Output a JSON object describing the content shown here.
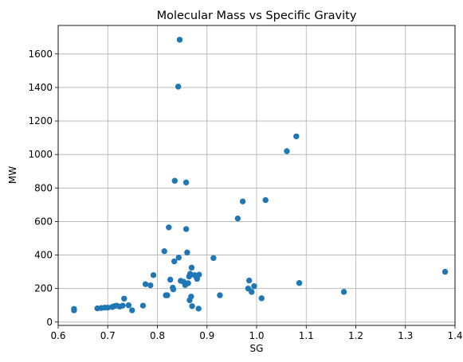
{
  "chart_data": {
    "type": "scatter",
    "title": "Molecular Mass vs Specific Gravity",
    "xlabel": "SG",
    "ylabel": "MW",
    "xlim": [
      0.6,
      1.4
    ],
    "ylim": [
      -20,
      1770
    ],
    "xticks": [
      0.6,
      0.7,
      0.8,
      0.9,
      1.0,
      1.1,
      1.2,
      1.3,
      1.4
    ],
    "yticks": [
      0,
      200,
      400,
      600,
      800,
      1000,
      1200,
      1400,
      1600
    ],
    "grid": true,
    "marker_color": "#1f77b4",
    "points": [
      {
        "x": 0.632,
        "y": 70
      },
      {
        "x": 0.632,
        "y": 78
      },
      {
        "x": 0.679,
        "y": 82
      },
      {
        "x": 0.687,
        "y": 84
      },
      {
        "x": 0.694,
        "y": 86
      },
      {
        "x": 0.7,
        "y": 86
      },
      {
        "x": 0.709,
        "y": 90
      },
      {
        "x": 0.713,
        "y": 95
      },
      {
        "x": 0.718,
        "y": 98
      },
      {
        "x": 0.724,
        "y": 92
      },
      {
        "x": 0.73,
        "y": 98
      },
      {
        "x": 0.733,
        "y": 140
      },
      {
        "x": 0.742,
        "y": 100
      },
      {
        "x": 0.749,
        "y": 70
      },
      {
        "x": 0.771,
        "y": 98
      },
      {
        "x": 0.776,
        "y": 226
      },
      {
        "x": 0.786,
        "y": 219
      },
      {
        "x": 0.792,
        "y": 280
      },
      {
        "x": 0.814,
        "y": 423
      },
      {
        "x": 0.817,
        "y": 160
      },
      {
        "x": 0.82,
        "y": 160
      },
      {
        "x": 0.823,
        "y": 565
      },
      {
        "x": 0.826,
        "y": 253
      },
      {
        "x": 0.831,
        "y": 205
      },
      {
        "x": 0.832,
        "y": 195
      },
      {
        "x": 0.834,
        "y": 362
      },
      {
        "x": 0.835,
        "y": 843
      },
      {
        "x": 0.842,
        "y": 1405
      },
      {
        "x": 0.843,
        "y": 385
      },
      {
        "x": 0.845,
        "y": 1685
      },
      {
        "x": 0.847,
        "y": 246
      },
      {
        "x": 0.853,
        "y": 240
      },
      {
        "x": 0.856,
        "y": 221
      },
      {
        "x": 0.858,
        "y": 555
      },
      {
        "x": 0.858,
        "y": 833
      },
      {
        "x": 0.86,
        "y": 415
      },
      {
        "x": 0.862,
        "y": 232
      },
      {
        "x": 0.864,
        "y": 272
      },
      {
        "x": 0.865,
        "y": 130
      },
      {
        "x": 0.866,
        "y": 288
      },
      {
        "x": 0.868,
        "y": 152
      },
      {
        "x": 0.869,
        "y": 325
      },
      {
        "x": 0.87,
        "y": 95
      },
      {
        "x": 0.875,
        "y": 280
      },
      {
        "x": 0.878,
        "y": 272
      },
      {
        "x": 0.88,
        "y": 258
      },
      {
        "x": 0.883,
        "y": 80
      },
      {
        "x": 0.884,
        "y": 283
      },
      {
        "x": 0.913,
        "y": 382
      },
      {
        "x": 0.926,
        "y": 160
      },
      {
        "x": 0.962,
        "y": 618
      },
      {
        "x": 0.972,
        "y": 720
      },
      {
        "x": 0.983,
        "y": 200
      },
      {
        "x": 0.985,
        "y": 248
      },
      {
        "x": 0.99,
        "y": 180
      },
      {
        "x": 0.995,
        "y": 214
      },
      {
        "x": 1.01,
        "y": 142
      },
      {
        "x": 1.018,
        "y": 728
      },
      {
        "x": 1.061,
        "y": 1020
      },
      {
        "x": 1.08,
        "y": 1108
      },
      {
        "x": 1.086,
        "y": 233
      },
      {
        "x": 1.176,
        "y": 180
      },
      {
        "x": 1.38,
        "y": 300
      }
    ]
  }
}
